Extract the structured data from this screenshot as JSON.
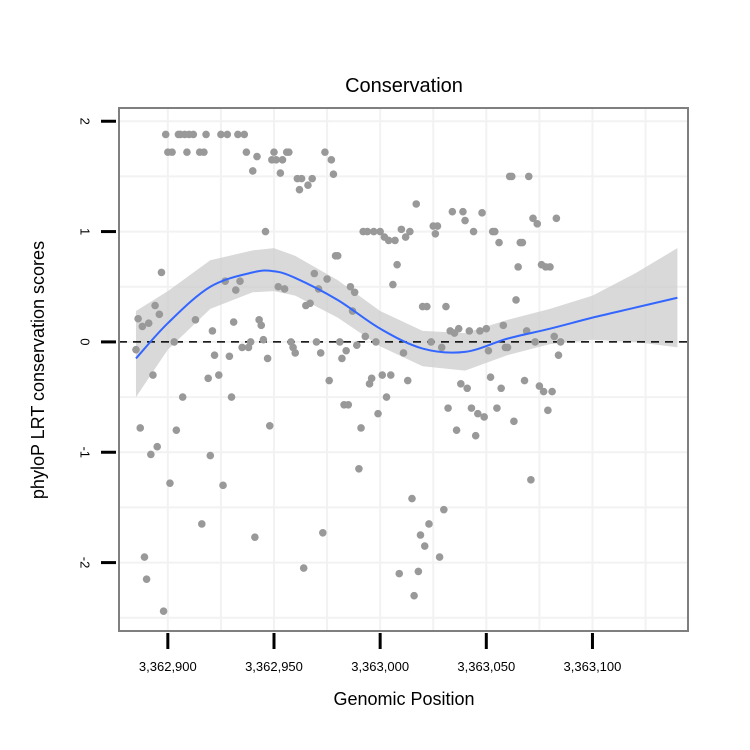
{
  "colors": {
    "points": "#999999",
    "smooth_line": "#3366FF",
    "ribbon": "#CCCCCC",
    "panel_border": "#7F7F7F",
    "grid": "#F2F2F2",
    "reference_line": "#000000"
  },
  "chart_data": {
    "type": "scatter",
    "title": "Conservation",
    "xlabel": "Genomic Position",
    "ylabel": "phyloP LRT conservation scores",
    "xlim": [
      3362877,
      3363145
    ],
    "ylim": [
      -2.62,
      2.12
    ],
    "x_ticks": [
      {
        "value": 3362900,
        "label": "3,362,900"
      },
      {
        "value": 3362950,
        "label": "3,362,950"
      },
      {
        "value": 3363000,
        "label": "3,363,000"
      },
      {
        "value": 3363050,
        "label": "3,363,050"
      },
      {
        "value": 3363100,
        "label": "3,363,100"
      }
    ],
    "y_ticks": [
      {
        "value": 2,
        "label": "2"
      },
      {
        "value": 1,
        "label": "1"
      },
      {
        "value": 0,
        "label": "0"
      },
      {
        "value": -1,
        "label": "-1"
      },
      {
        "value": -2,
        "label": "-2"
      }
    ],
    "reference_line": {
      "y": 0,
      "style": "dashed"
    },
    "points": [
      [
        3362885,
        -0.07
      ],
      [
        3362886,
        0.21
      ],
      [
        3362887,
        -0.78
      ],
      [
        3362888,
        0.14
      ],
      [
        3362889,
        -1.95
      ],
      [
        3362890,
        -2.15
      ],
      [
        3362891,
        0.17
      ],
      [
        3362892,
        -1.02
      ],
      [
        3362893,
        -0.3
      ],
      [
        3362894,
        0.33
      ],
      [
        3362895,
        -0.95
      ],
      [
        3362896,
        0.25
      ],
      [
        3362897,
        0.63
      ],
      [
        3362898,
        -2.44
      ],
      [
        3362899,
        1.88
      ],
      [
        3362900,
        1.72
      ],
      [
        3362901,
        -1.28
      ],
      [
        3362902,
        1.72
      ],
      [
        3362903,
        0.0
      ],
      [
        3362904,
        -0.8
      ],
      [
        3362905,
        1.88
      ],
      [
        3362906,
        1.88
      ],
      [
        3362907,
        -0.5
      ],
      [
        3362908,
        1.88
      ],
      [
        3362909,
        1.72
      ],
      [
        3362910,
        1.88
      ],
      [
        3362912,
        1.88
      ],
      [
        3362913,
        0.2
      ],
      [
        3362915,
        1.72
      ],
      [
        3362916,
        -1.65
      ],
      [
        3362917,
        1.72
      ],
      [
        3362918,
        1.88
      ],
      [
        3362919,
        -0.33
      ],
      [
        3362920,
        -1.03
      ],
      [
        3362921,
        0.1
      ],
      [
        3362922,
        -0.12
      ],
      [
        3362924,
        -0.3
      ],
      [
        3362925,
        1.88
      ],
      [
        3362926,
        -1.3
      ],
      [
        3362927,
        0.55
      ],
      [
        3362928,
        1.88
      ],
      [
        3362929,
        -0.13
      ],
      [
        3362930,
        -0.5
      ],
      [
        3362931,
        0.18
      ],
      [
        3362932,
        0.47
      ],
      [
        3362933,
        1.88
      ],
      [
        3362934,
        0.55
      ],
      [
        3362935,
        -0.05
      ],
      [
        3362936,
        1.88
      ],
      [
        3362937,
        1.72
      ],
      [
        3362938,
        -0.05
      ],
      [
        3362939,
        0.0
      ],
      [
        3362940,
        1.55
      ],
      [
        3362941,
        -1.77
      ],
      [
        3362942,
        1.68
      ],
      [
        3362943,
        0.2
      ],
      [
        3362944,
        0.15
      ],
      [
        3362945,
        0.02
      ],
      [
        3362946,
        1.0
      ],
      [
        3362947,
        -0.15
      ],
      [
        3362948,
        -0.76
      ],
      [
        3362949,
        1.65
      ],
      [
        3362950,
        1.72
      ],
      [
        3362951,
        1.65
      ],
      [
        3362952,
        0.5
      ],
      [
        3362953,
        1.53
      ],
      [
        3362954,
        1.65
      ],
      [
        3362955,
        0.48
      ],
      [
        3362956,
        1.72
      ],
      [
        3362957,
        1.72
      ],
      [
        3362958,
        0.0
      ],
      [
        3362959,
        -0.05
      ],
      [
        3362960,
        -0.1
      ],
      [
        3362961,
        1.48
      ],
      [
        3362962,
        1.38
      ],
      [
        3362963,
        1.48
      ],
      [
        3362964,
        -2.05
      ],
      [
        3362965,
        0.33
      ],
      [
        3362966,
        1.42
      ],
      [
        3362967,
        0.35
      ],
      [
        3362968,
        1.48
      ],
      [
        3362969,
        0.62
      ],
      [
        3362970,
        0.0
      ],
      [
        3362971,
        0.48
      ],
      [
        3362972,
        -0.1
      ],
      [
        3362973,
        -1.73
      ],
      [
        3362974,
        1.72
      ],
      [
        3362975,
        0.57
      ],
      [
        3362976,
        -0.35
      ],
      [
        3362977,
        1.65
      ],
      [
        3362978,
        1.52
      ],
      [
        3362979,
        0.78
      ],
      [
        3362980,
        0.78
      ],
      [
        3362981,
        0.0
      ],
      [
        3362982,
        -0.15
      ],
      [
        3362983,
        -0.57
      ],
      [
        3362984,
        -0.08
      ],
      [
        3362985,
        -0.57
      ],
      [
        3362986,
        0.5
      ],
      [
        3362987,
        0.28
      ],
      [
        3362988,
        0.45
      ],
      [
        3362989,
        -0.03
      ],
      [
        3362990,
        -1.15
      ],
      [
        3362991,
        -0.78
      ],
      [
        3362992,
        1.0
      ],
      [
        3362993,
        0.05
      ],
      [
        3362994,
        1.0
      ],
      [
        3362995,
        -0.38
      ],
      [
        3362996,
        -0.33
      ],
      [
        3362997,
        1.0
      ],
      [
        3362998,
        0.0
      ],
      [
        3362999,
        -0.65
      ],
      [
        3363000,
        1.0
      ],
      [
        3363001,
        -0.3
      ],
      [
        3363002,
        0.95
      ],
      [
        3363003,
        -0.5
      ],
      [
        3363004,
        0.92
      ],
      [
        3363005,
        -0.3
      ],
      [
        3363006,
        0.52
      ],
      [
        3363007,
        0.92
      ],
      [
        3363008,
        0.7
      ],
      [
        3363009,
        -2.1
      ],
      [
        3363010,
        1.02
      ],
      [
        3363011,
        -0.1
      ],
      [
        3363012,
        0.95
      ],
      [
        3363013,
        -0.35
      ],
      [
        3363014,
        1.0
      ],
      [
        3363015,
        -1.42
      ],
      [
        3363016,
        -2.3
      ],
      [
        3363017,
        1.25
      ],
      [
        3363018,
        -2.08
      ],
      [
        3363019,
        -1.75
      ],
      [
        3363020,
        0.32
      ],
      [
        3363021,
        -1.85
      ],
      [
        3363022,
        0.32
      ],
      [
        3363023,
        -1.65
      ],
      [
        3363024,
        0.0
      ],
      [
        3363025,
        1.05
      ],
      [
        3363026,
        0.98
      ],
      [
        3363027,
        1.05
      ],
      [
        3363028,
        -1.95
      ],
      [
        3363029,
        -0.05
      ],
      [
        3363030,
        -1.52
      ],
      [
        3363031,
        0.32
      ],
      [
        3363032,
        -0.6
      ],
      [
        3363033,
        0.1
      ],
      [
        3363034,
        1.18
      ],
      [
        3363035,
        0.08
      ],
      [
        3363036,
        -0.8
      ],
      [
        3363037,
        0.12
      ],
      [
        3363038,
        -0.38
      ],
      [
        3363039,
        1.18
      ],
      [
        3363040,
        1.1
      ],
      [
        3363041,
        -0.42
      ],
      [
        3363042,
        0.1
      ],
      [
        3363043,
        -0.6
      ],
      [
        3363044,
        1.0
      ],
      [
        3363045,
        -0.85
      ],
      [
        3363046,
        -0.65
      ],
      [
        3363047,
        0.1
      ],
      [
        3363048,
        1.17
      ],
      [
        3363049,
        -0.68
      ],
      [
        3363050,
        0.12
      ],
      [
        3363051,
        -0.08
      ],
      [
        3363052,
        -0.32
      ],
      [
        3363053,
        1.0
      ],
      [
        3363054,
        1.0
      ],
      [
        3363055,
        -0.6
      ],
      [
        3363056,
        0.9
      ],
      [
        3363057,
        -0.42
      ],
      [
        3363058,
        0.15
      ],
      [
        3363059,
        -0.05
      ],
      [
        3363060,
        -0.05
      ],
      [
        3363061,
        1.5
      ],
      [
        3363062,
        1.5
      ],
      [
        3363063,
        -0.72
      ],
      [
        3363064,
        0.38
      ],
      [
        3363065,
        0.68
      ],
      [
        3363066,
        0.9
      ],
      [
        3363067,
        0.9
      ],
      [
        3363068,
        -0.35
      ],
      [
        3363069,
        0.1
      ],
      [
        3363070,
        1.5
      ],
      [
        3363071,
        -1.25
      ],
      [
        3363072,
        1.12
      ],
      [
        3363073,
        0.0
      ],
      [
        3363074,
        1.07
      ],
      [
        3363075,
        -0.4
      ],
      [
        3363076,
        0.7
      ],
      [
        3363077,
        -0.45
      ],
      [
        3363078,
        0.68
      ],
      [
        3363079,
        -0.62
      ],
      [
        3363080,
        0.68
      ],
      [
        3363081,
        -0.45
      ],
      [
        3363082,
        0.05
      ],
      [
        3363083,
        1.12
      ],
      [
        3363084,
        -0.12
      ],
      [
        3363085,
        0.0
      ]
    ],
    "smooth_curve": [
      {
        "x": 3362885,
        "y": -0.15,
        "lo": -0.5,
        "hi": 0.28
      },
      {
        "x": 3362900,
        "y": 0.17,
        "lo": -0.07,
        "hi": 0.46
      },
      {
        "x": 3362920,
        "y": 0.5,
        "lo": 0.3,
        "hi": 0.74
      },
      {
        "x": 3362940,
        "y": 0.63,
        "lo": 0.45,
        "hi": 0.83
      },
      {
        "x": 3362950,
        "y": 0.64,
        "lo": 0.46,
        "hi": 0.85
      },
      {
        "x": 3362960,
        "y": 0.58,
        "lo": 0.42,
        "hi": 0.78
      },
      {
        "x": 3362980,
        "y": 0.38,
        "lo": 0.22,
        "hi": 0.56
      },
      {
        "x": 3363000,
        "y": 0.12,
        "lo": -0.04,
        "hi": 0.28
      },
      {
        "x": 3363020,
        "y": -0.06,
        "lo": -0.22,
        "hi": 0.1
      },
      {
        "x": 3363040,
        "y": -0.09,
        "lo": -0.26,
        "hi": 0.08
      },
      {
        "x": 3363060,
        "y": 0.03,
        "lo": -0.12,
        "hi": 0.2
      },
      {
        "x": 3363080,
        "y": 0.12,
        "lo": -0.02,
        "hi": 0.3
      },
      {
        "x": 3363100,
        "y": 0.22,
        "lo": 0.02,
        "hi": 0.42
      },
      {
        "x": 3363120,
        "y": 0.31,
        "lo": 0.0,
        "hi": 0.62
      },
      {
        "x": 3363140,
        "y": 0.4,
        "lo": -0.05,
        "hi": 0.85
      }
    ]
  }
}
